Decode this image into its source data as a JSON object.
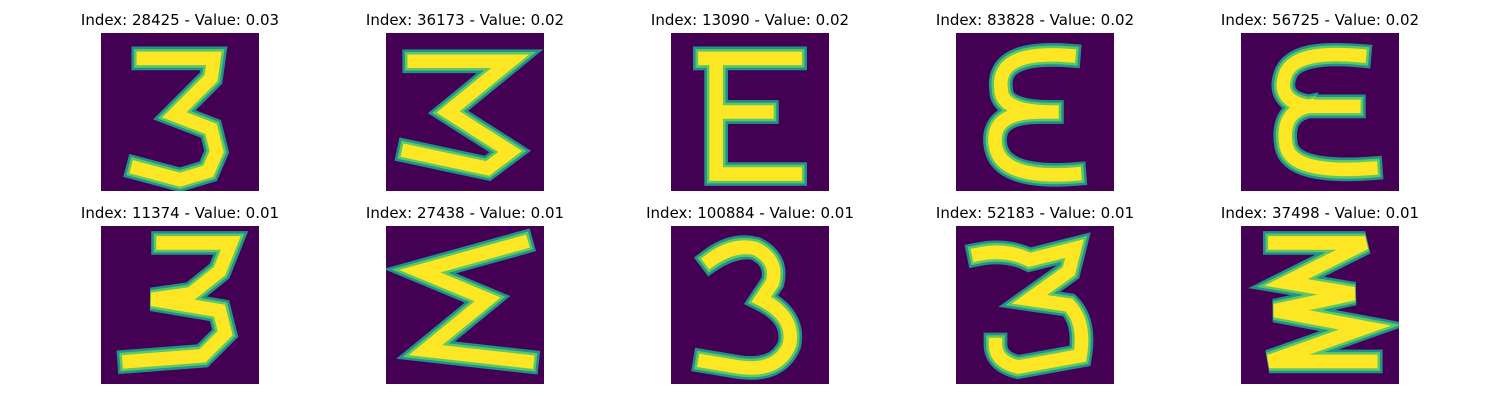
{
  "colors": {
    "background": "#440154",
    "stroke_outer": "#21918c",
    "stroke_mid": "#5ec962",
    "stroke_core": "#fde725"
  },
  "panels": [
    {
      "title": "Index: 28425 - Value: 0.03",
      "glyph": "3-a"
    },
    {
      "title": "Index: 36173 - Value: 0.02",
      "glyph": "z3-a"
    },
    {
      "title": "Index: 13090 - Value: 0.02",
      "glyph": "E-a"
    },
    {
      "title": "Index: 83828 - Value: 0.02",
      "glyph": "eps-a"
    },
    {
      "title": "Index: 56725 - Value: 0.02",
      "glyph": "E-b"
    },
    {
      "title": "Index: 11374 - Value: 0.01",
      "glyph": "3-b"
    },
    {
      "title": "Index: 27438 - Value: 0.01",
      "glyph": "sigma-a"
    },
    {
      "title": "Index: 100884 - Value: 0.01",
      "glyph": "3-c"
    },
    {
      "title": "Index: 52183 - Value: 0.01",
      "glyph": "3-d"
    },
    {
      "title": "Index: 37498 - Value: 0.01",
      "glyph": "z3-b"
    }
  ]
}
